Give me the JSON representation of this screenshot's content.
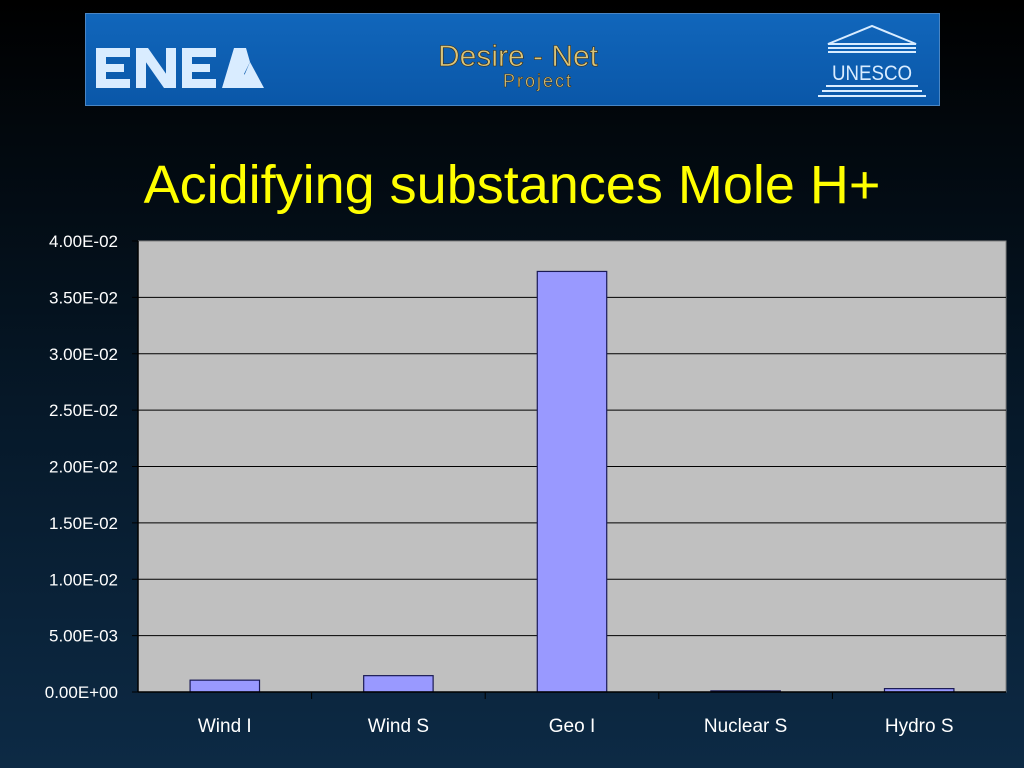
{
  "banner": {
    "left_logo_text": "ENEA",
    "project_name": "Desire - Net",
    "project_subtitle": "Project",
    "right_logo_text": "UNESCO",
    "banner_color": "#0a5fb0",
    "project_text_color": "#d8c47a",
    "logo_color": "#d9ecff"
  },
  "title": "Acidifying substances Mole H+",
  "title_color": "#ffff00",
  "chart_data": {
    "type": "bar",
    "title": "",
    "xlabel": "",
    "ylabel": "",
    "categories": [
      "Wind I",
      "Wind S",
      "Geo I",
      "Nuclear S",
      "Hydro S"
    ],
    "values": [
      0.00105,
      0.00145,
      0.0373,
      0.0001,
      0.0003
    ],
    "ylim": [
      0,
      0.04
    ],
    "yticks": [
      "0.00E+00",
      "5.00E-03",
      "1.00E-02",
      "1.50E-02",
      "2.00E-02",
      "2.50E-02",
      "3.00E-02",
      "3.50E-02",
      "4.00E-02"
    ],
    "grid": true,
    "legend": "none",
    "colors": {
      "plot_background": "#c0c0c0",
      "bar_fill": "#9999ff",
      "bar_stroke": "#1a1a55",
      "gridline": "#000000",
      "tick_label": "#ffffff"
    }
  }
}
